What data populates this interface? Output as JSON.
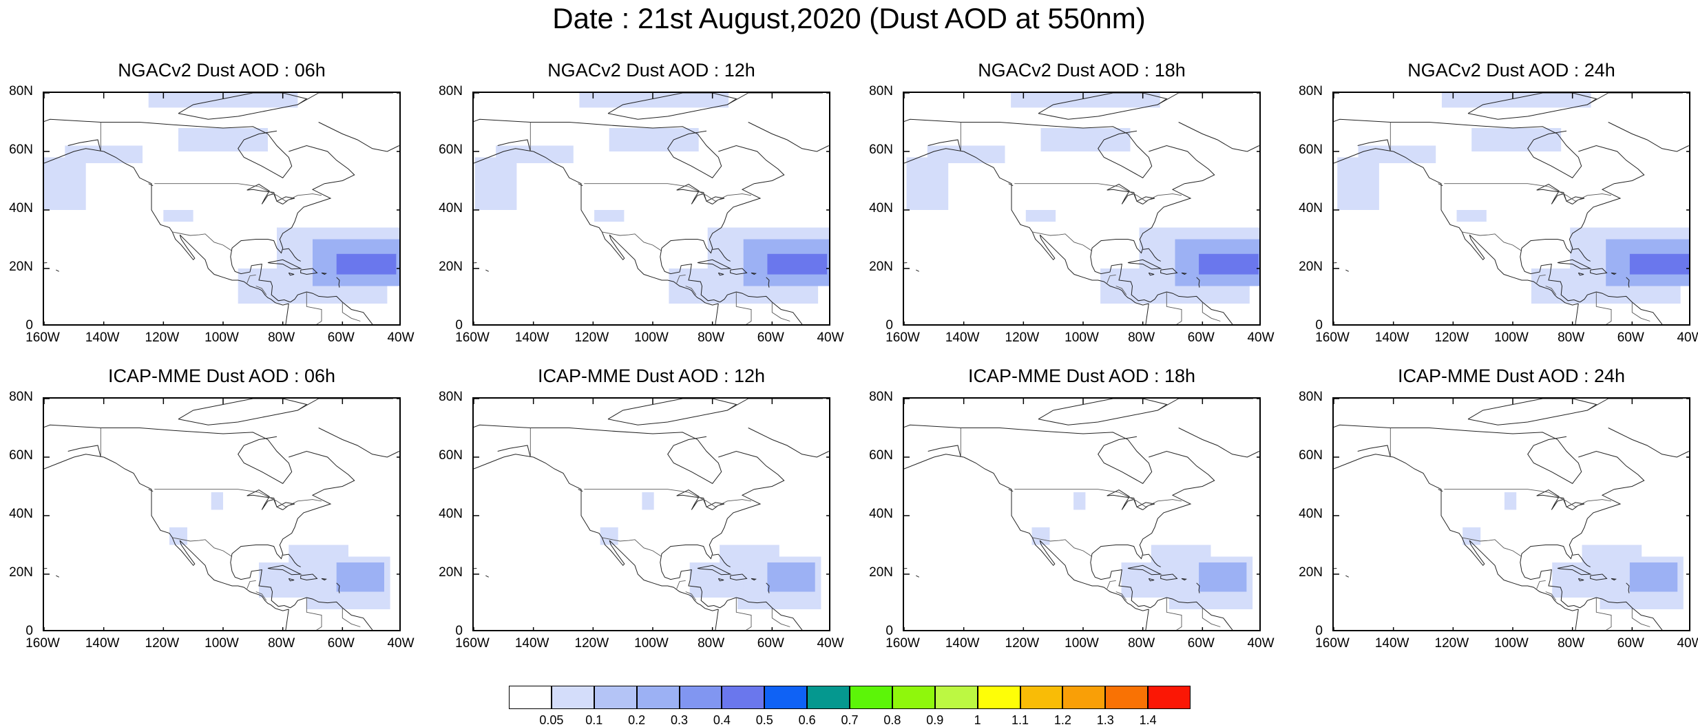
{
  "title": "Date : 21st August,2020 (Dust AOD at 550nm)",
  "axes": {
    "lat_labels": [
      "0",
      "20N",
      "40N",
      "60N",
      "80N"
    ],
    "lat_values": [
      0,
      20,
      40,
      60,
      80
    ],
    "lon_labels": [
      "160W",
      "140W",
      "120W",
      "100W",
      "80W",
      "60W",
      "40W"
    ],
    "lon_values": [
      -160,
      -140,
      -120,
      -100,
      -80,
      -60,
      -40
    ],
    "lon_range": [
      -160,
      -40
    ],
    "lat_range": [
      0,
      80
    ]
  },
  "panels": [
    {
      "title": "NGACv2 Dust AOD : 06h",
      "model": "NGACv2",
      "hour": 6,
      "row": 0,
      "col": 0
    },
    {
      "title": "NGACv2 Dust AOD : 12h",
      "model": "NGACv2",
      "hour": 12,
      "row": 0,
      "col": 1
    },
    {
      "title": "NGACv2 Dust AOD : 18h",
      "model": "NGACv2",
      "hour": 18,
      "row": 0,
      "col": 2
    },
    {
      "title": "NGACv2 Dust AOD : 24h",
      "model": "NGACv2",
      "hour": 24,
      "row": 0,
      "col": 3
    },
    {
      "title": "ICAP-MME Dust AOD : 06h",
      "model": "ICAP-MME",
      "hour": 6,
      "row": 1,
      "col": 0
    },
    {
      "title": "ICAP-MME Dust AOD : 12h",
      "model": "ICAP-MME",
      "hour": 12,
      "row": 1,
      "col": 1
    },
    {
      "title": "ICAP-MME Dust AOD : 18h",
      "model": "ICAP-MME",
      "hour": 18,
      "row": 1,
      "col": 2
    },
    {
      "title": "ICAP-MME Dust AOD : 24h",
      "model": "ICAP-MME",
      "hour": 24,
      "row": 1,
      "col": 3
    }
  ],
  "colorbar": {
    "labels": [
      "0.05",
      "0.1",
      "0.2",
      "0.3",
      "0.4",
      "0.5",
      "0.6",
      "0.7",
      "0.8",
      "0.9",
      "1",
      "1.1",
      "1.2",
      "1.3",
      "1.4"
    ],
    "colors": [
      "#ffffff",
      "#d4ddfa",
      "#b4c4f6",
      "#9cb1f4",
      "#8196f1",
      "#6a77ed",
      "#0f62f5",
      "#05988f",
      "#5cf508",
      "#8ff70c",
      "#bcf842",
      "#fefe07",
      "#f9bc06",
      "#f99f07",
      "#f97204",
      "#fb1705"
    ]
  },
  "dust_plumes": {
    "NGACv2": {
      "level1": [
        [
          -160,
          40,
          -146,
          58
        ],
        [
          -153,
          56,
          -127,
          62
        ],
        [
          -115,
          60,
          -85,
          68
        ],
        [
          -125,
          75,
          -75,
          80
        ],
        [
          -82,
          18,
          -40,
          34
        ],
        [
          -95,
          8,
          -45,
          20
        ],
        [
          -120,
          36,
          -110,
          40
        ]
      ],
      "level2": [
        [
          -70,
          14,
          -40,
          30
        ]
      ],
      "level3": [
        [
          -62,
          18,
          -42,
          25
        ]
      ]
    },
    "ICAP-MME": {
      "level1": [
        [
          -72,
          8,
          -44,
          26
        ],
        [
          -88,
          12,
          -70,
          24
        ],
        [
          -78,
          22,
          -58,
          30
        ],
        [
          -118,
          30,
          -112,
          36
        ],
        [
          -104,
          42,
          -100,
          48
        ]
      ],
      "level2": [
        [
          -62,
          14,
          -46,
          24
        ]
      ],
      "level3": []
    }
  }
}
